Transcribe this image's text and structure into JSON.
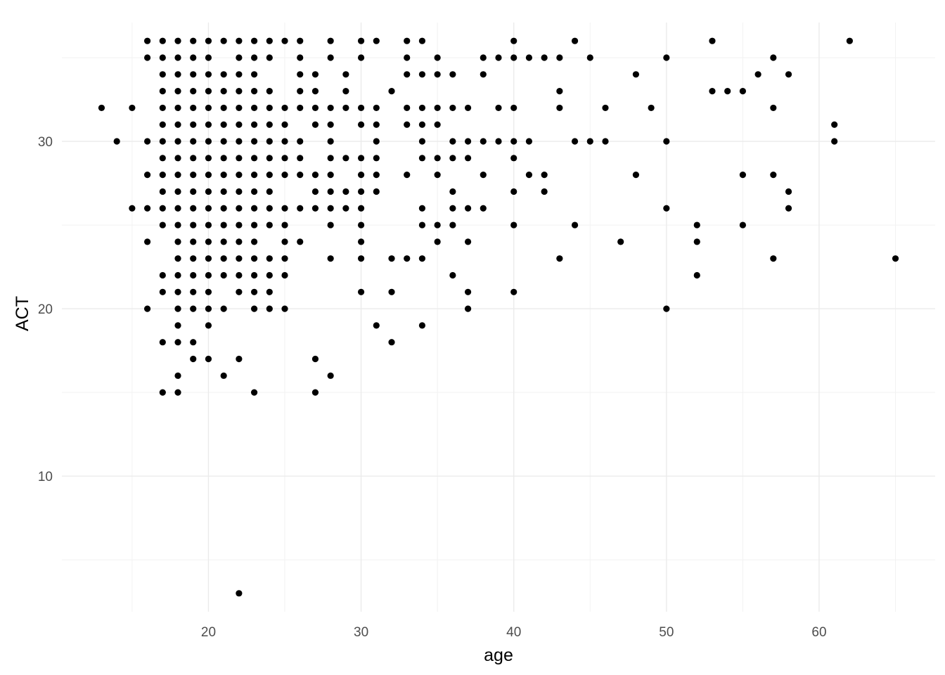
{
  "chart_data": {
    "type": "scatter",
    "xlabel": "age",
    "ylabel": "ACT",
    "xlim": [
      10.4,
      67.6
    ],
    "ylim": [
      1.9,
      37.1
    ],
    "x_ticks": [
      20,
      30,
      40,
      50,
      60
    ],
    "y_ticks": [
      10,
      20,
      30
    ],
    "grid": true,
    "point_color": "#000000",
    "points": [
      [
        13,
        32
      ],
      [
        14,
        30
      ],
      [
        15,
        32
      ],
      [
        15,
        26
      ],
      [
        16,
        36
      ],
      [
        16,
        35
      ],
      [
        16,
        30
      ],
      [
        16,
        28
      ],
      [
        16,
        26
      ],
      [
        16,
        24
      ],
      [
        16,
        20
      ],
      [
        17,
        36
      ],
      [
        17,
        35
      ],
      [
        17,
        34
      ],
      [
        17,
        33
      ],
      [
        17,
        32
      ],
      [
        17,
        31
      ],
      [
        17,
        30
      ],
      [
        17,
        29
      ],
      [
        17,
        28
      ],
      [
        17,
        27
      ],
      [
        17,
        26
      ],
      [
        17,
        25
      ],
      [
        17,
        22
      ],
      [
        17,
        21
      ],
      [
        17,
        18
      ],
      [
        17,
        15
      ],
      [
        18,
        36
      ],
      [
        18,
        35
      ],
      [
        18,
        34
      ],
      [
        18,
        33
      ],
      [
        18,
        32
      ],
      [
        18,
        31
      ],
      [
        18,
        30
      ],
      [
        18,
        29
      ],
      [
        18,
        28
      ],
      [
        18,
        27
      ],
      [
        18,
        26
      ],
      [
        18,
        25
      ],
      [
        18,
        24
      ],
      [
        18,
        23
      ],
      [
        18,
        22
      ],
      [
        18,
        21
      ],
      [
        18,
        20
      ],
      [
        18,
        19
      ],
      [
        18,
        18
      ],
      [
        18,
        16
      ],
      [
        18,
        15
      ],
      [
        19,
        36
      ],
      [
        19,
        35
      ],
      [
        19,
        34
      ],
      [
        19,
        33
      ],
      [
        19,
        32
      ],
      [
        19,
        31
      ],
      [
        19,
        30
      ],
      [
        19,
        29
      ],
      [
        19,
        28
      ],
      [
        19,
        27
      ],
      [
        19,
        26
      ],
      [
        19,
        25
      ],
      [
        19,
        24
      ],
      [
        19,
        23
      ],
      [
        19,
        22
      ],
      [
        19,
        21
      ],
      [
        19,
        20
      ],
      [
        19,
        18
      ],
      [
        19,
        17
      ],
      [
        20,
        36
      ],
      [
        20,
        35
      ],
      [
        20,
        34
      ],
      [
        20,
        33
      ],
      [
        20,
        32
      ],
      [
        20,
        31
      ],
      [
        20,
        30
      ],
      [
        20,
        29
      ],
      [
        20,
        28
      ],
      [
        20,
        27
      ],
      [
        20,
        26
      ],
      [
        20,
        25
      ],
      [
        20,
        24
      ],
      [
        20,
        23
      ],
      [
        20,
        22
      ],
      [
        20,
        21
      ],
      [
        20,
        20
      ],
      [
        20,
        19
      ],
      [
        20,
        17
      ],
      [
        21,
        36
      ],
      [
        21,
        34
      ],
      [
        21,
        33
      ],
      [
        21,
        32
      ],
      [
        21,
        31
      ],
      [
        21,
        30
      ],
      [
        21,
        29
      ],
      [
        21,
        28
      ],
      [
        21,
        27
      ],
      [
        21,
        26
      ],
      [
        21,
        25
      ],
      [
        21,
        24
      ],
      [
        21,
        23
      ],
      [
        21,
        22
      ],
      [
        21,
        20
      ],
      [
        21,
        16
      ],
      [
        22,
        36
      ],
      [
        22,
        35
      ],
      [
        22,
        34
      ],
      [
        22,
        33
      ],
      [
        22,
        32
      ],
      [
        22,
        31
      ],
      [
        22,
        30
      ],
      [
        22,
        29
      ],
      [
        22,
        28
      ],
      [
        22,
        27
      ],
      [
        22,
        26
      ],
      [
        22,
        25
      ],
      [
        22,
        24
      ],
      [
        22,
        23
      ],
      [
        22,
        22
      ],
      [
        22,
        21
      ],
      [
        22,
        17
      ],
      [
        22,
        3
      ],
      [
        23,
        36
      ],
      [
        23,
        35
      ],
      [
        23,
        34
      ],
      [
        23,
        33
      ],
      [
        23,
        32
      ],
      [
        23,
        31
      ],
      [
        23,
        30
      ],
      [
        23,
        29
      ],
      [
        23,
        28
      ],
      [
        23,
        27
      ],
      [
        23,
        26
      ],
      [
        23,
        25
      ],
      [
        23,
        24
      ],
      [
        23,
        23
      ],
      [
        23,
        22
      ],
      [
        23,
        21
      ],
      [
        23,
        20
      ],
      [
        23,
        15
      ],
      [
        24,
        36
      ],
      [
        24,
        35
      ],
      [
        24,
        33
      ],
      [
        24,
        32
      ],
      [
        24,
        31
      ],
      [
        24,
        30
      ],
      [
        24,
        29
      ],
      [
        24,
        28
      ],
      [
        24,
        27
      ],
      [
        24,
        26
      ],
      [
        24,
        25
      ],
      [
        24,
        23
      ],
      [
        24,
        22
      ],
      [
        24,
        21
      ],
      [
        24,
        20
      ],
      [
        25,
        36
      ],
      [
        25,
        32
      ],
      [
        25,
        31
      ],
      [
        25,
        30
      ],
      [
        25,
        29
      ],
      [
        25,
        28
      ],
      [
        25,
        26
      ],
      [
        25,
        25
      ],
      [
        25,
        24
      ],
      [
        25,
        23
      ],
      [
        25,
        22
      ],
      [
        25,
        20
      ],
      [
        26,
        36
      ],
      [
        26,
        35
      ],
      [
        26,
        34
      ],
      [
        26,
        33
      ],
      [
        26,
        32
      ],
      [
        26,
        30
      ],
      [
        26,
        29
      ],
      [
        26,
        28
      ],
      [
        26,
        26
      ],
      [
        26,
        24
      ],
      [
        27,
        34
      ],
      [
        27,
        33
      ],
      [
        27,
        32
      ],
      [
        27,
        31
      ],
      [
        27,
        28
      ],
      [
        27,
        27
      ],
      [
        27,
        26
      ],
      [
        27,
        17
      ],
      [
        27,
        15
      ],
      [
        28,
        36
      ],
      [
        28,
        35
      ],
      [
        28,
        32
      ],
      [
        28,
        31
      ],
      [
        28,
        30
      ],
      [
        28,
        29
      ],
      [
        28,
        28
      ],
      [
        28,
        27
      ],
      [
        28,
        26
      ],
      [
        28,
        25
      ],
      [
        28,
        23
      ],
      [
        28,
        16
      ],
      [
        29,
        34
      ],
      [
        29,
        33
      ],
      [
        29,
        32
      ],
      [
        29,
        29
      ],
      [
        29,
        27
      ],
      [
        29,
        26
      ],
      [
        30,
        36
      ],
      [
        30,
        35
      ],
      [
        30,
        32
      ],
      [
        30,
        31
      ],
      [
        30,
        29
      ],
      [
        30,
        28
      ],
      [
        30,
        27
      ],
      [
        30,
        26
      ],
      [
        30,
        25
      ],
      [
        30,
        24
      ],
      [
        30,
        23
      ],
      [
        30,
        21
      ],
      [
        31,
        36
      ],
      [
        31,
        32
      ],
      [
        31,
        31
      ],
      [
        31,
        30
      ],
      [
        31,
        29
      ],
      [
        31,
        28
      ],
      [
        31,
        27
      ],
      [
        31,
        19
      ],
      [
        32,
        33
      ],
      [
        32,
        23
      ],
      [
        32,
        21
      ],
      [
        32,
        18
      ],
      [
        33,
        36
      ],
      [
        33,
        35
      ],
      [
        33,
        34
      ],
      [
        33,
        32
      ],
      [
        33,
        31
      ],
      [
        33,
        28
      ],
      [
        33,
        23
      ],
      [
        34,
        36
      ],
      [
        34,
        34
      ],
      [
        34,
        32
      ],
      [
        34,
        31
      ],
      [
        34,
        30
      ],
      [
        34,
        29
      ],
      [
        34,
        26
      ],
      [
        34,
        25
      ],
      [
        34,
        23
      ],
      [
        34,
        19
      ],
      [
        35,
        35
      ],
      [
        35,
        34
      ],
      [
        35,
        32
      ],
      [
        35,
        31
      ],
      [
        35,
        29
      ],
      [
        35,
        28
      ],
      [
        35,
        25
      ],
      [
        35,
        24
      ],
      [
        36,
        34
      ],
      [
        36,
        32
      ],
      [
        36,
        30
      ],
      [
        36,
        29
      ],
      [
        36,
        27
      ],
      [
        36,
        26
      ],
      [
        36,
        25
      ],
      [
        36,
        22
      ],
      [
        37,
        32
      ],
      [
        37,
        30
      ],
      [
        37,
        29
      ],
      [
        37,
        26
      ],
      [
        37,
        24
      ],
      [
        37,
        21
      ],
      [
        37,
        20
      ],
      [
        38,
        35
      ],
      [
        38,
        34
      ],
      [
        38,
        30
      ],
      [
        38,
        28
      ],
      [
        38,
        26
      ],
      [
        39,
        35
      ],
      [
        39,
        32
      ],
      [
        39,
        30
      ],
      [
        40,
        36
      ],
      [
        40,
        35
      ],
      [
        40,
        32
      ],
      [
        40,
        30
      ],
      [
        40,
        29
      ],
      [
        40,
        27
      ],
      [
        40,
        25
      ],
      [
        40,
        21
      ],
      [
        41,
        35
      ],
      [
        41,
        30
      ],
      [
        41,
        28
      ],
      [
        42,
        35
      ],
      [
        42,
        28
      ],
      [
        42,
        27
      ],
      [
        43,
        35
      ],
      [
        43,
        33
      ],
      [
        43,
        32
      ],
      [
        43,
        23
      ],
      [
        44,
        36
      ],
      [
        44,
        30
      ],
      [
        44,
        25
      ],
      [
        45,
        35
      ],
      [
        45,
        30
      ],
      [
        46,
        32
      ],
      [
        46,
        30
      ],
      [
        47,
        24
      ],
      [
        48,
        34
      ],
      [
        48,
        28
      ],
      [
        49,
        32
      ],
      [
        50,
        35
      ],
      [
        50,
        30
      ],
      [
        50,
        26
      ],
      [
        50,
        20
      ],
      [
        52,
        25
      ],
      [
        52,
        24
      ],
      [
        52,
        22
      ],
      [
        53,
        36
      ],
      [
        53,
        33
      ],
      [
        54,
        33
      ],
      [
        55,
        33
      ],
      [
        55,
        28
      ],
      [
        55,
        25
      ],
      [
        56,
        34
      ],
      [
        57,
        35
      ],
      [
        57,
        32
      ],
      [
        57,
        28
      ],
      [
        57,
        23
      ],
      [
        58,
        34
      ],
      [
        58,
        27
      ],
      [
        58,
        26
      ],
      [
        61,
        31
      ],
      [
        61,
        30
      ],
      [
        62,
        36
      ],
      [
        65,
        23
      ]
    ]
  }
}
